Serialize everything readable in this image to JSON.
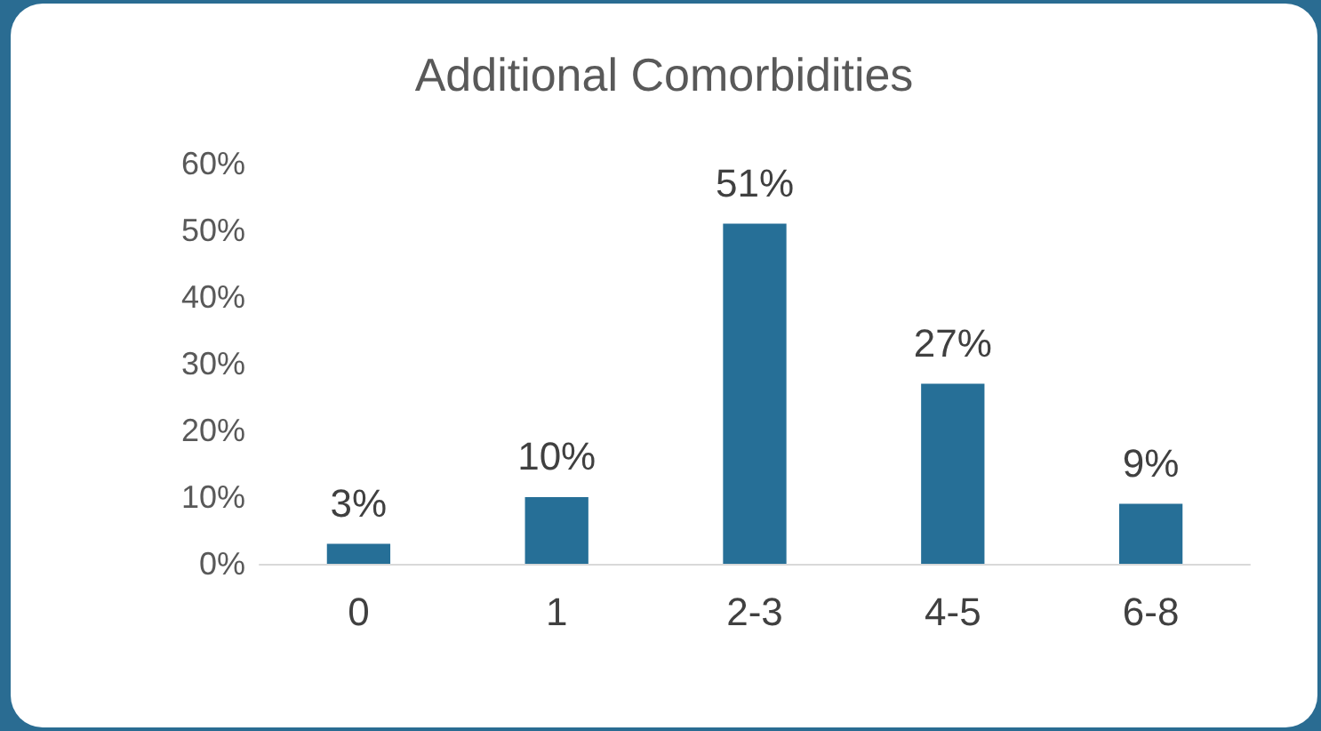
{
  "chart_data": {
    "type": "bar",
    "title": "Additional Comorbidities",
    "categories": [
      "0",
      "1",
      "2-3",
      "4-5",
      "6-8"
    ],
    "values": [
      3,
      10,
      51,
      27,
      9
    ],
    "value_labels": [
      "3%",
      "10%",
      "51%",
      "27%",
      "9%"
    ],
    "color": "#266f97",
    "ylim": [
      0,
      60
    ],
    "yticks": [
      {
        "value": 0,
        "label": "0%"
      },
      {
        "value": 10,
        "label": "10%"
      },
      {
        "value": 20,
        "label": "20%"
      },
      {
        "value": 30,
        "label": "30%"
      },
      {
        "value": 40,
        "label": "40%"
      },
      {
        "value": 50,
        "label": "50%"
      },
      {
        "value": 60,
        "label": "60%"
      }
    ],
    "grid": false
  }
}
